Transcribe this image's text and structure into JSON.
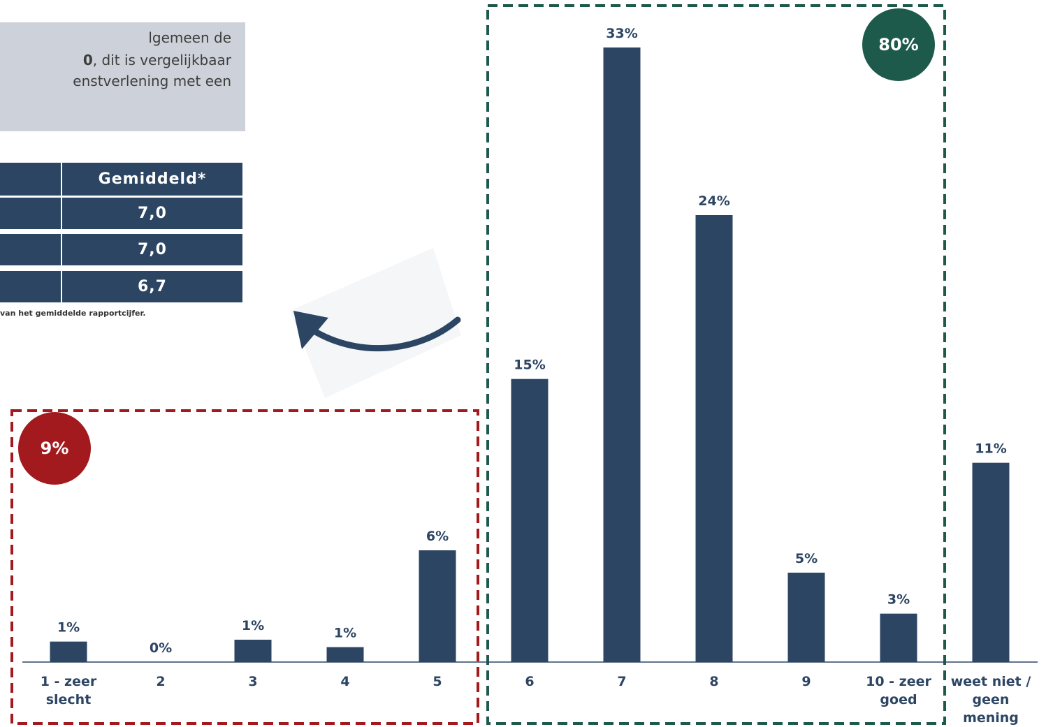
{
  "note": {
    "lines": [
      "lgemeen de",
      "0",
      ", dit is vergelijkbaar",
      "enstverlening met een"
    ]
  },
  "table": {
    "header": "Gemiddeld*",
    "rows": [
      "7,0",
      "7,0",
      "6,7"
    ],
    "footnote": "van het gemiddelde rapportcijfer."
  },
  "chart_data": {
    "type": "bar",
    "categories": [
      "1 - zeer slecht",
      "2",
      "3",
      "4",
      "5",
      "6",
      "7",
      "8",
      "9",
      "10 - zeer goed",
      "weet niet / geen mening"
    ],
    "values": [
      1.1,
      0,
      1.2,
      0.8,
      6,
      15.2,
      33,
      24,
      4.8,
      2.6,
      10.7
    ],
    "value_labels": [
      "1%",
      "0%",
      "1%",
      "1%",
      "6%",
      "15%",
      "33%",
      "24%",
      "5%",
      "3%",
      "11%"
    ],
    "color": "#2c4563",
    "groups": [
      {
        "label": "9%",
        "value": 9,
        "color": "#a31a1e"
      },
      {
        "label": "80%",
        "value": 80,
        "color": "#1e5a4c"
      }
    ]
  }
}
